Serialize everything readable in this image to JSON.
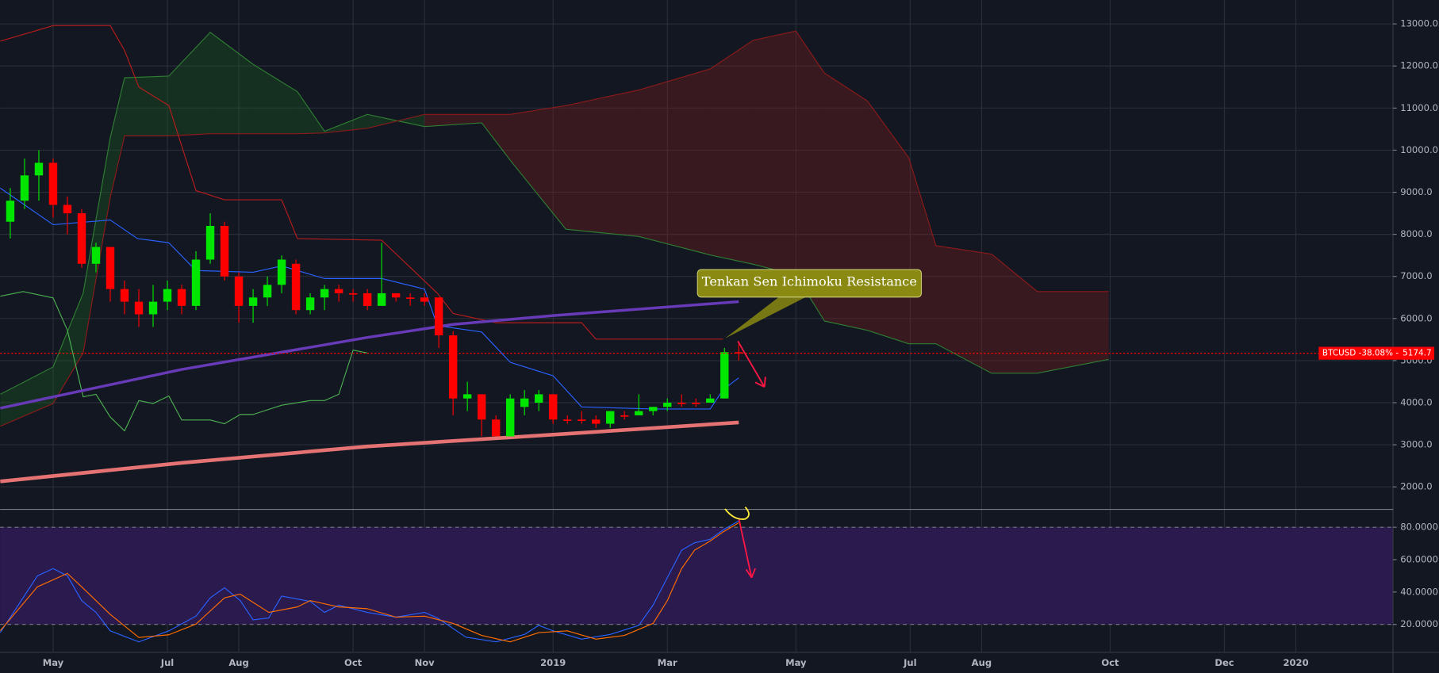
{
  "chart_data": [
    {
      "type": "candlestick",
      "xlim": [
        -0.71,
        96.8
      ],
      "ylim": [
        1477,
        13568
      ],
      "yticks": [
        {
          "value": 2000,
          "label": "2000.0"
        },
        {
          "value": 3000,
          "label": "3000.0"
        },
        {
          "value": 4000,
          "label": "4000.0"
        },
        {
          "value": 5000,
          "label": "5000.0"
        },
        {
          "value": 6000,
          "label": "6000.0"
        },
        {
          "value": 7000,
          "label": "7000.0"
        },
        {
          "value": 8000,
          "label": "8000.0"
        },
        {
          "value": 9000,
          "label": "9000.0"
        },
        {
          "value": 10000,
          "label": "10000.0"
        },
        {
          "value": 11000,
          "label": "11000.0"
        },
        {
          "value": 12000,
          "label": "12000.0"
        },
        {
          "value": 13000,
          "label": "13000.0"
        }
      ],
      "xticks": [
        {
          "value": 3,
          "label": "May"
        },
        {
          "value": 11,
          "label": "Jul"
        },
        {
          "value": 16,
          "label": "Aug"
        },
        {
          "value": 24,
          "label": "Oct"
        },
        {
          "value": 29,
          "label": "Nov"
        },
        {
          "value": 38,
          "label": "2019"
        },
        {
          "value": 46,
          "label": "Mar"
        },
        {
          "value": 55,
          "label": "May"
        },
        {
          "value": 63,
          "label": "Jul"
        },
        {
          "value": 68,
          "label": "Aug"
        },
        {
          "value": 77,
          "label": "Oct"
        },
        {
          "value": 85,
          "label": "Dec"
        },
        {
          "value": 90,
          "label": "2020"
        }
      ],
      "grid": true,
      "up_color": "#00e600",
      "down_color": "#ff0000",
      "x": [
        0,
        1,
        2,
        3,
        4,
        5,
        6,
        7,
        8,
        9,
        10,
        11,
        12,
        13,
        14,
        15,
        16,
        17,
        18,
        19,
        20,
        21,
        22,
        23,
        24,
        25,
        26,
        27,
        28,
        29,
        30,
        31,
        32,
        33,
        34,
        35,
        36,
        37,
        38,
        39,
        40,
        41,
        42,
        43,
        44,
        45,
        46,
        47,
        48,
        49,
        50,
        51
      ],
      "open": [
        8300,
        8800,
        9400,
        9700,
        8700,
        8500,
        7300,
        7700,
        6700,
        6400,
        6100,
        6400,
        6700,
        6300,
        7400,
        8200,
        7000,
        6300,
        6500,
        6800,
        7300,
        6200,
        6500,
        6700,
        6600,
        6600,
        6300,
        6600,
        6500,
        6500,
        6500,
        5600,
        4100,
        4200,
        3600,
        3200,
        3900,
        4000,
        4200,
        3600,
        3600,
        3600,
        3500,
        3700,
        3700,
        3800,
        3900,
        4000,
        4000,
        4000,
        4100,
        5200
      ],
      "high": [
        9100,
        9800,
        10000,
        9800,
        8900,
        8600,
        7800,
        7700,
        6900,
        6700,
        6800,
        6900,
        6800,
        7600,
        8500,
        8300,
        7100,
        6700,
        7000,
        7500,
        7400,
        6600,
        6800,
        6800,
        6700,
        6700,
        7800,
        6600,
        6600,
        6600,
        6500,
        5700,
        4500,
        4200,
        3700,
        4200,
        4300,
        4300,
        4200,
        3700,
        3800,
        3700,
        3800,
        3800,
        4200,
        3900,
        4100,
        4200,
        4100,
        4200,
        5300,
        5400
      ],
      "low": [
        7900,
        8600,
        8800,
        8400,
        8000,
        7200,
        7100,
        6400,
        6100,
        5800,
        5800,
        6200,
        6100,
        6200,
        7300,
        6900,
        5900,
        5900,
        6300,
        6600,
        6100,
        6100,
        6200,
        6400,
        6400,
        6200,
        6300,
        6400,
        6300,
        6300,
        5300,
        3700,
        3800,
        3200,
        3200,
        3200,
        3700,
        3800,
        3500,
        3500,
        3500,
        3400,
        3400,
        3600,
        3700,
        3700,
        3800,
        3900,
        3900,
        4000,
        4100,
        5000
      ],
      "close": [
        8800,
        9400,
        9700,
        8700,
        8500,
        7300,
        7700,
        6700,
        6400,
        6100,
        6400,
        6700,
        6300,
        7400,
        8200,
        7000,
        6300,
        6500,
        6800,
        7400,
        6200,
        6500,
        6700,
        6600,
        6600,
        6300,
        6600,
        6500,
        6500,
        6400,
        5600,
        4100,
        4200,
        3600,
        3200,
        4100,
        4100,
        4200,
        3600,
        3600,
        3600,
        3500,
        3800,
        3700,
        3800,
        3900,
        4000,
        4000,
        4000,
        4100,
        5200,
        5175
      ],
      "cloud": {
        "up_color": "#1b5e20",
        "down_color": "#7f1d1d",
        "a_color": "#2e7d32",
        "b_color": "#8b1a1a",
        "x": [
          -0.7,
          3.0,
          5.1,
          7.0,
          8.0,
          11.1,
          14.0,
          17.0,
          20.1,
          22.0,
          25.0,
          29.0,
          33.0,
          35.0,
          38.9,
          44.0,
          49.0,
          52.0,
          55.0,
          57.0,
          60.0,
          62.9,
          64.8,
          68.7,
          71.9,
          76.9
        ],
        "span_a": [
          4200,
          4850,
          6600,
          10300,
          11720,
          11760,
          12800,
          12040,
          11390,
          10450,
          10850,
          10560,
          10650,
          9760,
          8120,
          7950,
          7510,
          7290,
          7030,
          5940,
          5720,
          5400,
          5400,
          4700,
          4700,
          5030
        ],
        "span_b": [
          3440,
          3980,
          5180,
          8880,
          10340,
          10340,
          10390,
          10390,
          10390,
          10410,
          10520,
          10850,
          10850,
          10850,
          11060,
          11430,
          11930,
          12610,
          12830,
          11830,
          11170,
          9820,
          7730,
          7530,
          6640,
          6640
        ]
      },
      "series": [
        {
          "color": "#2962ff",
          "width": 1,
          "x": [
            -0.7,
            3.0,
            7.0,
            8.9,
            11.1,
            13.0,
            17.0,
            19.0,
            22.0,
            26.0,
            29.0,
            29.9,
            33.0,
            35.0,
            38.0,
            40.0,
            45.0,
            49.0,
            49.9,
            51.0
          ],
          "values": [
            9100,
            8230,
            8340,
            7900,
            7800,
            7140,
            7100,
            7250,
            6950,
            6950,
            6700,
            5830,
            5680,
            4960,
            4640,
            3900,
            3850,
            3850,
            4310,
            4590
          ]
        },
        {
          "color": "#b71c1c",
          "width": 1,
          "x": [
            -0.7,
            3.0,
            7.0,
            8.0,
            9.0,
            11.1,
            13.0,
            15.0,
            19.0,
            20.1,
            26.0,
            29.9,
            31.0,
            34.0,
            40.0,
            41.0,
            49.9
          ],
          "values": [
            12590,
            12960,
            12960,
            12370,
            11500,
            11060,
            9040,
            8820,
            8820,
            7900,
            7860,
            6600,
            6120,
            5900,
            5900,
            5510,
            5510
          ]
        },
        {
          "color": "#4caf50",
          "width": 1,
          "x": [
            -0.7,
            0.9,
            3.0,
            4.0,
            5.1,
            6.0,
            7.0,
            8.0,
            9.0,
            10.0,
            11.1,
            12.0,
            14.0,
            15.0,
            16.1,
            17.0,
            19.0,
            21.0,
            22.0,
            23.0,
            24.0,
            25.0
          ],
          "values": [
            6530,
            6640,
            6490,
            5720,
            4140,
            4200,
            3660,
            3330,
            4050,
            3980,
            4160,
            3590,
            3590,
            3500,
            3720,
            3720,
            3940,
            4050,
            4050,
            4200,
            5250,
            5180
          ]
        },
        {
          "color": "#673ab7",
          "width": 3,
          "x": [
            -0.7,
            12.0,
            25.0,
            31.0,
            38.0,
            51.0
          ],
          "values": [
            3870,
            4790,
            5550,
            5860,
            6070,
            6400
          ]
        },
        {
          "color": "#e57373",
          "width": 4,
          "x": [
            -0.7,
            12.0,
            25.0,
            38.0,
            51.0
          ],
          "values": [
            2130,
            2570,
            2960,
            3240,
            3530
          ]
        }
      ],
      "last_price": 5174.7,
      "last_price_prefix": "BTCUSD -38.08% -",
      "annotation": "Tenkan Sen Ichimoku Resistance"
    },
    {
      "type": "line",
      "ylim": [
        3.0,
        90.8
      ],
      "yticks": [
        {
          "value": 20,
          "label": "20.0000"
        },
        {
          "value": 40,
          "label": "40.0000"
        },
        {
          "value": 60,
          "label": "60.0000"
        },
        {
          "value": 80,
          "label": "80.0000"
        }
      ],
      "band": [
        20,
        80
      ],
      "band_color": "#2a1a4e",
      "series": [
        {
          "color": "#2962ff",
          "x": [
            -0.7,
            1.9,
            3.0,
            4.0,
            5.0,
            6.0,
            7.0,
            9.0,
            11.1,
            13.0,
            14.0,
            15.0,
            16.1,
            17.0,
            18.1,
            19.0,
            21.0,
            22.0,
            23.0,
            25.0,
            27.0,
            29.0,
            29.9,
            31.9,
            34.0,
            36.0,
            37.0,
            38.0,
            40.0,
            42.0,
            44.0,
            45.0,
            46.0,
            47.0,
            47.9,
            49.0,
            49.9,
            51.0
          ],
          "values": [
            14.9,
            50.0,
            54.5,
            50.0,
            34.7,
            27.4,
            16.0,
            9.2,
            16.0,
            25.1,
            36.4,
            42.6,
            34.7,
            22.8,
            24.0,
            37.5,
            34.2,
            27.4,
            31.9,
            27.4,
            24.5,
            27.4,
            24.0,
            12.1,
            9.2,
            13.8,
            19.4,
            16.0,
            10.9,
            13.8,
            19.4,
            31.9,
            48.9,
            65.8,
            70.4,
            72.6,
            78.3,
            84.0
          ]
        },
        {
          "color": "#ff6d00",
          "x": [
            -0.7,
            1.9,
            4.0,
            5.0,
            7.0,
            9.0,
            11.1,
            13.0,
            15.0,
            16.1,
            18.1,
            20.1,
            21.0,
            23.0,
            25.0,
            27.0,
            29.0,
            31.0,
            33.0,
            35.0,
            37.0,
            39.0,
            41.0,
            43.0,
            45.0,
            46.0,
            47.0,
            47.9,
            49.0,
            49.9,
            51.0
          ],
          "values": [
            16.1,
            43.2,
            51.5,
            43.2,
            26.2,
            11.9,
            13.6,
            20.2,
            36.4,
            38.7,
            27.4,
            30.8,
            34.7,
            30.8,
            29.7,
            24.5,
            25.1,
            20.6,
            13.2,
            9.2,
            14.9,
            16.0,
            10.9,
            13.2,
            20.6,
            34.7,
            54.5,
            65.8,
            71.5,
            77.1,
            82.8
          ]
        }
      ]
    }
  ]
}
